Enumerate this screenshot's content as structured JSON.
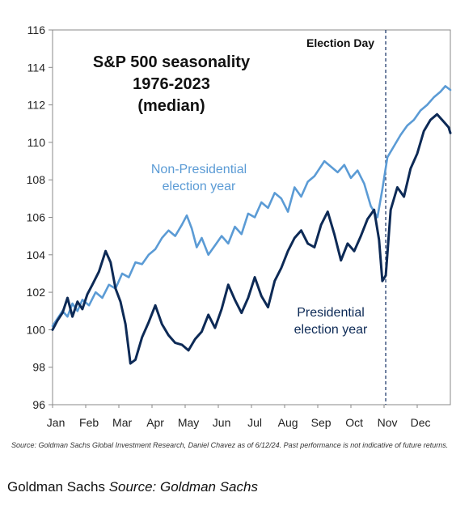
{
  "chart_data": {
    "type": "line",
    "title_lines": [
      "S&P 500 seasonality",
      "1976-2023",
      "(median)"
    ],
    "xlabel": "",
    "ylabel": "",
    "x_domain_months": [
      0,
      12
    ],
    "ylim": [
      96,
      116
    ],
    "y_ticks": [
      96,
      98,
      100,
      102,
      104,
      106,
      108,
      110,
      112,
      114,
      116
    ],
    "x_tick_labels": [
      "Jan",
      "Feb",
      "Mar",
      "Apr",
      "May",
      "Jun",
      "Jul",
      "Aug",
      "Sep",
      "Oct",
      "Nov",
      "Dec"
    ],
    "grid": false,
    "annotation": {
      "label": "Election Day",
      "x_month": 10.05
    },
    "series": [
      {
        "name_lines": [
          "Non-Presidential",
          "election year"
        ],
        "color": "#5b9bd5",
        "x": [
          0,
          0.15,
          0.3,
          0.45,
          0.6,
          0.75,
          0.9,
          1.1,
          1.3,
          1.5,
          1.7,
          1.9,
          2.1,
          2.3,
          2.5,
          2.7,
          2.9,
          3.1,
          3.3,
          3.5,
          3.7,
          3.9,
          4.05,
          4.2,
          4.35,
          4.5,
          4.7,
          4.9,
          5.1,
          5.3,
          5.5,
          5.7,
          5.9,
          6.1,
          6.3,
          6.5,
          6.7,
          6.9,
          7.1,
          7.3,
          7.5,
          7.7,
          7.9,
          8.05,
          8.2,
          8.4,
          8.6,
          8.8,
          9.0,
          9.2,
          9.4,
          9.6,
          9.8,
          9.95,
          10.1,
          10.3,
          10.5,
          10.7,
          10.9,
          11.1,
          11.3,
          11.5,
          11.7,
          11.85,
          12.0
        ],
        "values": [
          100.2,
          100.6,
          101.0,
          100.7,
          101.4,
          101.0,
          101.6,
          101.3,
          102.0,
          101.7,
          102.4,
          102.2,
          103.0,
          102.8,
          103.6,
          103.5,
          104.0,
          104.3,
          104.9,
          105.3,
          105.0,
          105.6,
          106.1,
          105.4,
          104.4,
          104.9,
          104.0,
          104.5,
          105.0,
          104.6,
          105.5,
          105.1,
          106.2,
          106.0,
          106.8,
          106.5,
          107.3,
          107.0,
          106.3,
          107.6,
          107.1,
          107.9,
          108.2,
          108.6,
          109.0,
          108.7,
          108.4,
          108.8,
          108.1,
          108.5,
          107.8,
          106.6,
          106.0,
          107.5,
          109.2,
          109.8,
          110.4,
          110.9,
          111.2,
          111.7,
          112.0,
          112.4,
          112.7,
          113.0,
          112.8
        ]
      },
      {
        "name_lines": [
          "Presidential",
          "election year"
        ],
        "color": "#0d2a56",
        "x": [
          0,
          0.15,
          0.3,
          0.45,
          0.6,
          0.75,
          0.9,
          1.05,
          1.2,
          1.4,
          1.6,
          1.75,
          1.9,
          2.05,
          2.2,
          2.35,
          2.5,
          2.7,
          2.9,
          3.1,
          3.3,
          3.5,
          3.7,
          3.9,
          4.1,
          4.3,
          4.5,
          4.7,
          4.9,
          5.1,
          5.3,
          5.5,
          5.7,
          5.9,
          6.1,
          6.3,
          6.5,
          6.7,
          6.9,
          7.1,
          7.3,
          7.5,
          7.7,
          7.9,
          8.1,
          8.3,
          8.5,
          8.7,
          8.9,
          9.1,
          9.3,
          9.5,
          9.7,
          9.85,
          9.95,
          10.05,
          10.2,
          10.4,
          10.6,
          10.8,
          11.0,
          11.2,
          11.4,
          11.6,
          11.8,
          11.95,
          12.0
        ],
        "values": [
          100.0,
          100.5,
          100.9,
          101.7,
          100.7,
          101.5,
          101.1,
          101.9,
          102.4,
          103.1,
          104.2,
          103.6,
          102.2,
          101.5,
          100.3,
          98.2,
          98.4,
          99.6,
          100.4,
          101.3,
          100.3,
          99.7,
          99.3,
          99.2,
          98.9,
          99.5,
          99.9,
          100.8,
          100.1,
          101.1,
          102.4,
          101.6,
          100.9,
          101.7,
          102.8,
          101.8,
          101.2,
          102.6,
          103.3,
          104.2,
          104.9,
          105.3,
          104.6,
          104.4,
          105.6,
          106.3,
          105.1,
          103.7,
          104.6,
          104.2,
          105.0,
          105.9,
          106.4,
          104.8,
          102.6,
          102.9,
          106.4,
          107.6,
          107.1,
          108.6,
          109.4,
          110.6,
          111.2,
          111.5,
          111.1,
          110.8,
          110.5
        ]
      }
    ]
  },
  "source_note": "Source: Goldman Sachs Global Investment Research, Daniel Chavez  as of 6/12/24. Past performance is not indicative of future returns.",
  "caption": {
    "prefix": "Goldman Sachs ",
    "source": "Source: Goldman Sachs"
  }
}
